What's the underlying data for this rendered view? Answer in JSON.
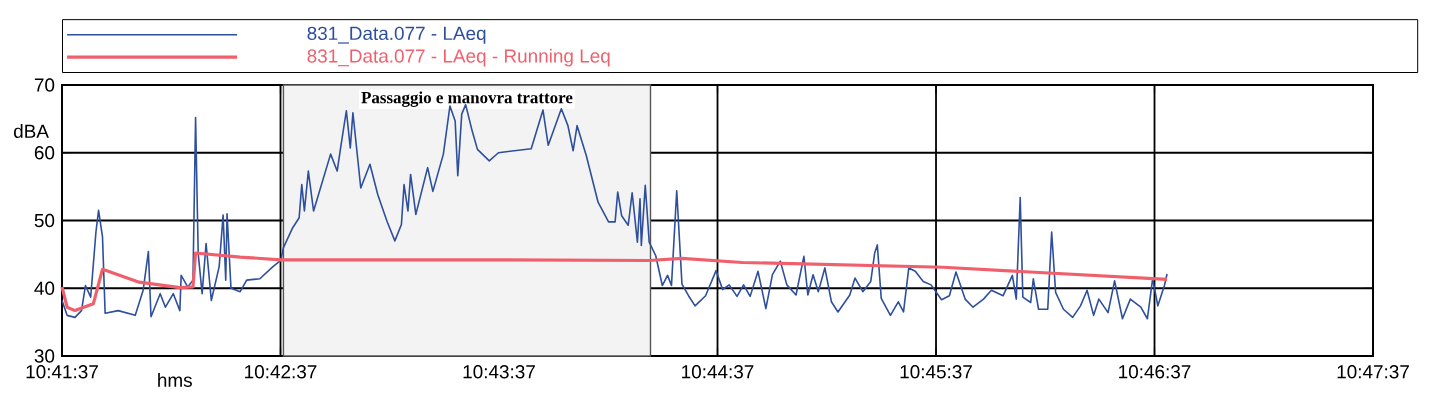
{
  "chart_data": {
    "type": "line",
    "xlabel": "hms",
    "ylabel": "dBA",
    "xlim": [
      10.693611,
      10.793611
    ],
    "ylim": [
      30,
      70
    ],
    "xticks": [
      {
        "value": 10.693611,
        "label": "10:41:37"
      },
      {
        "value": 10.710278,
        "label": "10:42:37"
      },
      {
        "value": 10.726944,
        "label": "10:43:37"
      },
      {
        "value": 10.743611,
        "label": "10:44:37"
      },
      {
        "value": 10.760278,
        "label": "10:45:37"
      },
      {
        "value": 10.776944,
        "label": "10:46:37"
      },
      {
        "value": 10.793611,
        "label": "10:47:37"
      }
    ],
    "yticks": [
      30,
      40,
      50,
      60,
      70
    ],
    "grid": true,
    "legend": "top",
    "bands": [
      {
        "axis": "x",
        "from": 10.7105,
        "to": 10.7385,
        "label": "Passaggio e manovra trattore",
        "color": "#555555"
      }
    ],
    "series": [
      {
        "name": "831_Data.077 - LAeq",
        "color": "#2e4f9c",
        "x": [
          10.693611,
          10.694,
          10.6946,
          10.6951,
          10.6954,
          10.6958,
          10.6962,
          10.6964,
          10.6967,
          10.6969,
          10.6979,
          10.6992,
          10.6998,
          10.7002,
          10.7004,
          10.7011,
          10.7015,
          10.7021,
          10.7026,
          10.7027,
          10.7032,
          10.7036,
          10.7038,
          10.704,
          10.7043,
          10.7046,
          10.705,
          10.7056,
          10.7059,
          10.7061,
          10.7062,
          10.7065,
          10.7072,
          10.7077,
          10.7087,
          10.7097,
          10.7103,
          10.7105,
          10.7112,
          10.7117,
          10.7119,
          10.7121,
          10.7124,
          10.7128,
          10.7141,
          10.7146,
          10.7149,
          10.7153,
          10.7156,
          10.7158,
          10.7164,
          10.7171,
          10.7177,
          10.7184,
          10.719,
          10.7195,
          10.7197,
          10.72,
          10.7202,
          10.7206,
          10.7215,
          10.7219,
          10.7227,
          10.7232,
          10.7236,
          10.7238,
          10.7241,
          10.7244,
          10.7249,
          10.7253,
          10.7262,
          10.7269,
          10.7294,
          10.7303,
          10.7307,
          10.7317,
          10.7322,
          10.7326,
          10.7329,
          10.7336,
          10.7345,
          10.7353,
          10.7358,
          10.736,
          10.7363,
          10.7368,
          10.7371,
          10.7375,
          10.7377,
          10.7378,
          10.7381,
          10.7384,
          10.7389,
          10.7394,
          10.7398,
          10.7401,
          10.7405,
          10.7409,
          10.7414,
          10.7419,
          10.7427,
          10.7435,
          10.744,
          10.7445,
          10.7451,
          10.7456,
          10.7461,
          10.7467,
          10.7473,
          10.7478,
          10.7484,
          10.7489,
          10.7496,
          10.7502,
          10.7505,
          10.7509,
          10.7513,
          10.7518,
          10.7523,
          10.7528,
          10.7537,
          10.7541,
          10.7547,
          10.7553,
          10.7556,
          10.7558,
          10.7561,
          10.7568,
          10.7574,
          10.7578,
          10.7582,
          10.7587,
          10.7593,
          10.7599,
          10.7607,
          10.7613,
          10.7618,
          10.7625,
          10.7631,
          10.7639,
          10.7645,
          10.7654,
          10.7661,
          10.7664,
          10.7667,
          10.7669,
          10.7675,
          10.7677,
          10.7681,
          10.7688,
          10.7691,
          10.7694,
          10.77,
          10.7707,
          10.7713,
          10.7718,
          10.7723,
          10.7727,
          10.7734,
          10.7739,
          10.7745,
          10.7751,
          10.7759,
          10.7764,
          10.7768,
          10.7772,
          10.7777,
          10.7779
        ],
        "values": [
          38.2,
          36.0,
          35.7,
          36.7,
          40.4,
          38.7,
          48.3,
          51.5,
          47.6,
          36.3,
          36.7,
          36.0,
          39.7,
          45.4,
          35.8,
          39.2,
          37.2,
          39.2,
          36.7,
          41.9,
          40.2,
          41.2,
          65.2,
          45.1,
          39.2,
          46.6,
          38.2,
          43.2,
          50.8,
          41.2,
          51.0,
          40.0,
          39.5,
          41.2,
          41.4,
          43.2,
          44.1,
          46.0,
          48.9,
          50.4,
          55.3,
          51.4,
          57.3,
          51.4,
          59.8,
          57.3,
          61.2,
          66.2,
          60.7,
          65.9,
          54.8,
          58.3,
          53.8,
          49.9,
          47.0,
          49.4,
          55.3,
          51.4,
          56.8,
          50.9,
          57.8,
          54.3,
          59.8,
          66.9,
          64.7,
          56.6,
          65.7,
          67.1,
          63.2,
          60.5,
          58.8,
          60.0,
          60.6,
          66.3,
          61.1,
          66.5,
          64.0,
          60.3,
          64.0,
          59.6,
          52.7,
          49.8,
          49.8,
          54.2,
          50.7,
          49.3,
          54.1,
          46.8,
          53.2,
          46.3,
          55.2,
          46.8,
          44.8,
          40.4,
          41.9,
          40.4,
          54.4,
          40.6,
          38.9,
          37.4,
          38.9,
          42.6,
          39.8,
          40.5,
          38.8,
          40.5,
          38.8,
          42.5,
          37.0,
          42.0,
          44.0,
          40.5,
          39.0,
          44.7,
          39.0,
          42.0,
          39.5,
          43.0,
          38.0,
          36.5,
          39.0,
          41.5,
          39.5,
          41.0,
          45.2,
          46.4,
          38.5,
          36.0,
          38.0,
          36.5,
          43.0,
          42.5,
          41.0,
          40.5,
          38.3,
          38.9,
          42.4,
          38.4,
          37.2,
          38.4,
          39.7,
          38.9,
          41.9,
          38.4,
          53.4,
          38.7,
          37.9,
          41.4,
          36.9,
          36.9,
          48.3,
          39.4,
          36.9,
          35.7,
          37.4,
          39.7,
          36.0,
          38.4,
          36.4,
          41.1,
          35.5,
          38.4,
          37.2,
          35.5,
          41.4,
          37.4,
          40.4,
          42.1
        ]
      },
      {
        "name": "831_Data.077 - LAeq - Running Leq",
        "color": "#f0606c",
        "x": [
          10.693611,
          10.694,
          10.6946,
          10.696,
          10.6967,
          10.6995,
          10.7026,
          10.7036,
          10.7038,
          10.7072,
          10.7103,
          10.7269,
          10.7384,
          10.7409,
          10.7455,
          10.7608,
          10.7779
        ],
        "values": [
          40.2,
          37.2,
          36.7,
          37.7,
          42.8,
          40.9,
          40.1,
          40.2,
          45.2,
          44.6,
          44.2,
          44.2,
          44.1,
          44.4,
          43.8,
          43.1,
          41.3
        ]
      }
    ]
  }
}
